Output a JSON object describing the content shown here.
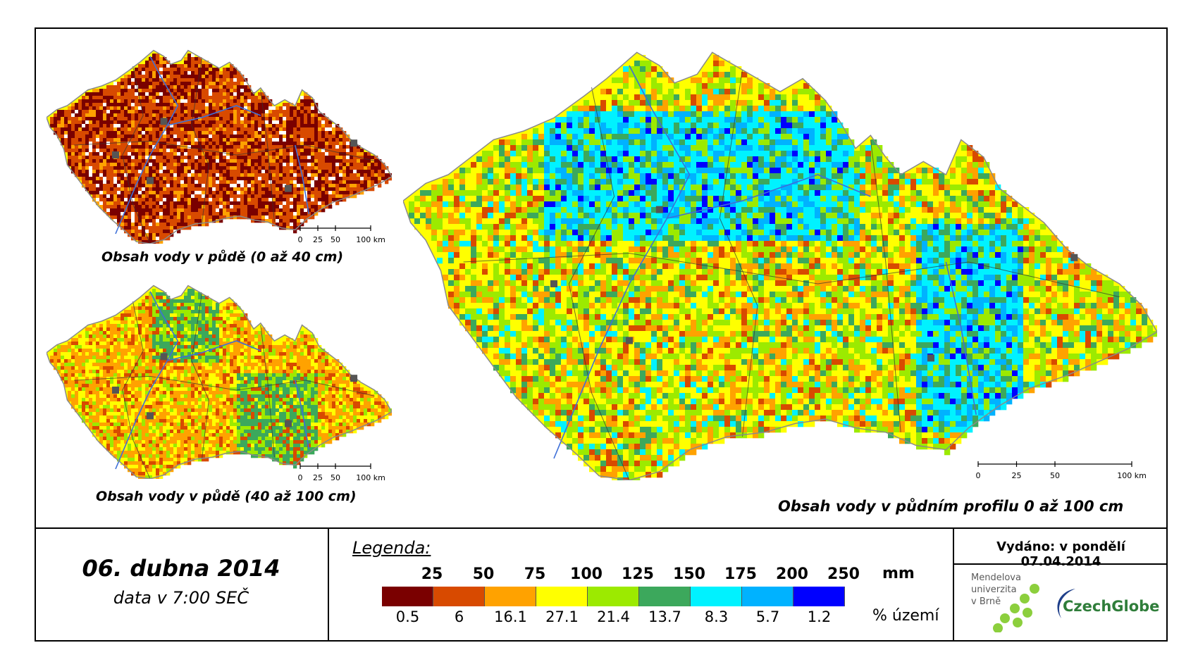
{
  "maps": {
    "top_left": {
      "caption": "Obsah vody v půdě (0 až 40 cm)"
    },
    "bottom_left": {
      "caption": "Obsah vody v půdě (40 až 100 cm)"
    },
    "main": {
      "caption": "Obsah vody v půdním profilu 0 až 100 cm"
    }
  },
  "scale_bar": {
    "labels": [
      "0",
      "25",
      "50",
      "100 km"
    ],
    "values_km": [
      0,
      25,
      50,
      100
    ]
  },
  "footer": {
    "date": "06. dubna 2014",
    "time": "data v 7:00 SEČ",
    "issued": "Vydáno: v pondělí 07.04.2014"
  },
  "legend": {
    "title": "Legenda:",
    "unit_mm": "mm",
    "unit_pct": "% území",
    "thresholds": [
      "25",
      "50",
      "75",
      "100",
      "125",
      "150",
      "175",
      "200",
      "250"
    ],
    "classes": [
      {
        "color": "#7a0000",
        "pct": "0.5"
      },
      {
        "color": "#d84a00",
        "pct": "6"
      },
      {
        "color": "#ffa200",
        "pct": "16.1"
      },
      {
        "color": "#ffff00",
        "pct": "27.1"
      },
      {
        "color": "#9cea00",
        "pct": "21.4"
      },
      {
        "color": "#3ca85c",
        "pct": "13.7"
      },
      {
        "color": "#00f2ff",
        "pct": "8.3"
      },
      {
        "color": "#00b2ff",
        "pct": "5.7"
      },
      {
        "color": "#0000ff",
        "pct": "1.2"
      }
    ]
  },
  "logos": {
    "mendel": [
      "Mendelova",
      "univerzita",
      "v Brně"
    ],
    "czechglobe": "CzechGlobe"
  },
  "colors": {
    "border": "#8a8a8a",
    "rivers": "#3d6fd8",
    "cities": "#555555",
    "logo_green": "#8ccf3d"
  }
}
